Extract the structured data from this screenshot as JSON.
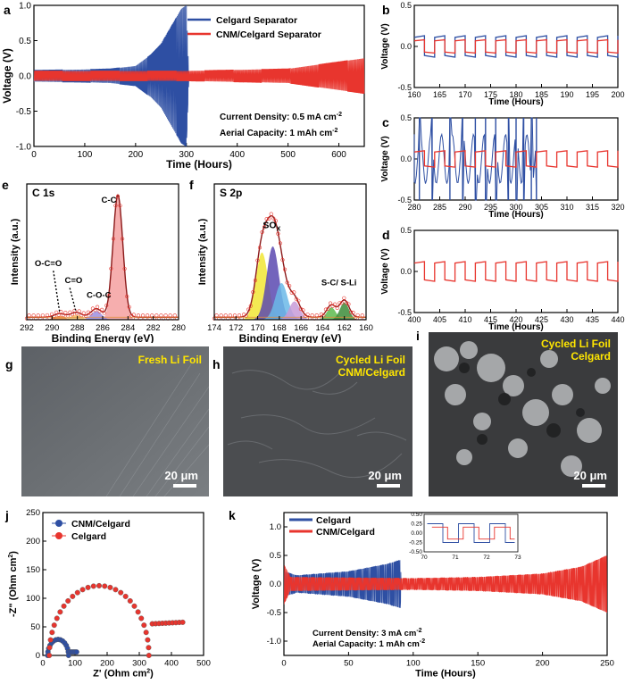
{
  "colors": {
    "celgard": "#2e4fa3",
    "cnm": "#e8352e",
    "fit": "#8b1a1a",
    "sem_label": "#ffe600"
  },
  "panel_letters": [
    "a",
    "b",
    "c",
    "d",
    "e",
    "f",
    "g",
    "h",
    "i",
    "j",
    "k"
  ],
  "chart_data": [
    {
      "id": "a",
      "type": "line",
      "xlabel": "Time (Hours)",
      "ylabel": "Voltage (V)",
      "xlim": [
        0,
        650
      ],
      "ylim": [
        -1.0,
        1.0
      ],
      "xticks": [
        0,
        100,
        200,
        300,
        400,
        500,
        600
      ],
      "yticks": [
        -1.0,
        -0.5,
        0.0,
        0.5,
        1.0
      ],
      "series": [
        {
          "name": "Celgard Separator",
          "color": "#2e4fa3",
          "cycle_period_h": 2,
          "amplitude_envelope": {
            "t": [
              0,
              100,
              150,
              200,
              230,
              250,
              270,
              290,
              300,
              305
            ],
            "v": [
              0.08,
              0.09,
              0.1,
              0.14,
              0.3,
              0.45,
              0.7,
              0.95,
              1.0,
              0
            ]
          }
        },
        {
          "name": "CNM/Celgard Separator",
          "color": "#e8352e",
          "cycle_period_h": 2,
          "amplitude_envelope": {
            "t": [
              0,
              300,
              500,
              600,
              650
            ],
            "v": [
              0.07,
              0.07,
              0.1,
              0.2,
              0.25
            ]
          }
        }
      ],
      "annotations": [
        "Current Density: 0.5 mA cm",
        "Aerial Capacity: 1 mAh cm"
      ],
      "annotation_units": [
        "-2",
        "-2"
      ]
    },
    {
      "id": "b",
      "type": "line",
      "xlabel": "Time (Hours)",
      "ylabel": "Voltage (V)",
      "xlim": [
        160,
        200
      ],
      "ylim": [
        -0.5,
        0.5
      ],
      "xticks": [
        160,
        165,
        170,
        175,
        180,
        185,
        190,
        195,
        200
      ],
      "yticks": [
        -0.5,
        0.0,
        0.5
      ],
      "series": [
        {
          "name": "Celgard Separator",
          "color": "#2e4fa3",
          "amplitude": 0.13,
          "period_h": 4
        },
        {
          "name": "CNM/Celgard Separator",
          "color": "#e8352e",
          "amplitude": 0.08,
          "period_h": 4
        }
      ]
    },
    {
      "id": "c",
      "type": "line",
      "xlabel": "Time (Hours)",
      "ylabel": "Voltage (V)",
      "xlim": [
        280,
        320
      ],
      "ylim": [
        -0.5,
        0.5
      ],
      "xticks": [
        280,
        285,
        290,
        295,
        300,
        305,
        310,
        315,
        320
      ],
      "yticks": [
        -0.5,
        0.0,
        0.5
      ],
      "series": [
        {
          "name": "Celgard Separator",
          "color": "#2e4fa3",
          "fail_time_h": 304
        },
        {
          "name": "CNM/Celgard Separator",
          "color": "#e8352e",
          "amplitude": 0.1,
          "period_h": 4
        }
      ]
    },
    {
      "id": "d",
      "type": "line",
      "xlabel": "Time (Hours)",
      "ylabel": "Voltage (V)",
      "xlim": [
        400,
        440
      ],
      "ylim": [
        -0.5,
        0.5
      ],
      "xticks": [
        400,
        405,
        410,
        415,
        420,
        425,
        430,
        435,
        440
      ],
      "yticks": [
        -0.5,
        0.0,
        0.5
      ],
      "series": [
        {
          "name": "CNM/Celgard Separator",
          "color": "#e8352e",
          "amplitude": 0.12,
          "period_h": 4
        }
      ]
    },
    {
      "id": "e",
      "type": "area",
      "title": "C 1s",
      "xlabel": "Binding Energy (eV)",
      "ylabel": "Intensity (a.u.)",
      "xlim": [
        292,
        280
      ],
      "xticks": [
        292,
        290,
        288,
        286,
        284,
        282,
        280
      ],
      "peaks": [
        {
          "label": "C-C",
          "center": 284.8,
          "height": 1.0,
          "width": 0.55,
          "color": "#f4a0a0"
        },
        {
          "label": "C-O-C",
          "center": 286.5,
          "height": 0.07,
          "width": 0.6,
          "color": "#9c8fe0"
        },
        {
          "label": "C=O",
          "center": 288.1,
          "height": 0.04,
          "width": 0.6,
          "color": "#f6c26b"
        },
        {
          "label": "O-C=O",
          "center": 289.4,
          "height": 0.03,
          "width": 0.6,
          "color": "#f08c3c"
        }
      ]
    },
    {
      "id": "f",
      "type": "area",
      "title": "S 2p",
      "xlabel": "Binding Energy (eV)",
      "ylabel": "Intensity (a.u.)",
      "xlim": [
        174,
        160
      ],
      "xticks": [
        174,
        172,
        170,
        168,
        166,
        164,
        162,
        160
      ],
      "labels": [
        "SO",
        "X",
        "S-C/ S-Li"
      ],
      "peaks": [
        {
          "center": 169.6,
          "height": 0.55,
          "width": 0.8,
          "color": "#f1e635"
        },
        {
          "center": 168.6,
          "height": 0.6,
          "width": 0.8,
          "color": "#5a49b0"
        },
        {
          "center": 167.8,
          "height": 0.3,
          "width": 0.8,
          "color": "#6bb8e8"
        },
        {
          "center": 166.6,
          "height": 0.15,
          "width": 0.7,
          "color": "#c89bd8"
        },
        {
          "center": 163.2,
          "height": 0.1,
          "width": 0.6,
          "color": "#5dbb4f"
        },
        {
          "center": 162.0,
          "height": 0.14,
          "width": 0.6,
          "color": "#3c8c3a"
        }
      ]
    },
    {
      "id": "j",
      "type": "scatter",
      "xlabel": "Z' (Ohm cm",
      "ylabel": "-Z\" (Ohm cm",
      "unit_sup": "2",
      "xlim": [
        0,
        500
      ],
      "ylim": [
        0,
        250
      ],
      "xticks": [
        0,
        100,
        200,
        300,
        400,
        500
      ],
      "yticks": [
        0,
        50,
        100,
        150,
        200,
        250
      ],
      "series": [
        {
          "name": "CNM/Celgard",
          "color": "#2e4fa3",
          "semicircle": {
            "start": 15,
            "end": 80,
            "peak": 28
          },
          "tail_end": 105
        },
        {
          "name": "Celgard",
          "color": "#e8352e",
          "semicircle": {
            "start": 20,
            "end": 330,
            "peak": 122
          },
          "tail_end": 435
        }
      ]
    },
    {
      "id": "k",
      "type": "line",
      "xlabel": "Time (Hours)",
      "ylabel": "Voltage (V)",
      "xlim": [
        0,
        250
      ],
      "ylim": [
        -1.25,
        1.25
      ],
      "xticks": [
        0,
        50,
        100,
        150,
        200,
        250
      ],
      "yticks": [
        -1.0,
        -0.5,
        0.0,
        0.5,
        1.0
      ],
      "series": [
        {
          "name": "Celgard",
          "color": "#2e4fa3",
          "amplitude_envelope": {
            "t": [
              0,
              10,
              50,
              80,
              90,
              91
            ],
            "v": [
              0.22,
              0.15,
              0.22,
              0.35,
              0.42,
              0
            ]
          }
        },
        {
          "name": "CNM/Celgard",
          "color": "#e8352e",
          "amplitude_envelope": {
            "t": [
              0,
              5,
              100,
              150,
              200,
              230,
              250
            ],
            "v": [
              0.35,
              0.12,
              0.1,
              0.12,
              0.18,
              0.3,
              0.5
            ]
          }
        }
      ],
      "annotations": [
        "Current Density: 3 mA cm",
        "Aerial Capacity: 1 mAh cm"
      ],
      "annotation_units": [
        "-2",
        "-2"
      ],
      "inset": {
        "xlim": [
          70,
          73
        ],
        "ylim": [
          -0.5,
          0.5
        ],
        "xticks": [
          70,
          71,
          72,
          73
        ],
        "yticks": [
          "0.50",
          "0.25",
          "0.00",
          "-0.25",
          "-0.50"
        ]
      }
    }
  ],
  "sem": [
    {
      "id": "g",
      "label": "Fresh Li Foil",
      "scale": "20 μm"
    },
    {
      "id": "h",
      "label": "Cycled Li Foil",
      "label2": "CNM/Celgard",
      "scale": "20 μm"
    },
    {
      "id": "i",
      "label": "Cycled Li Foil",
      "label2": "Celgard",
      "scale": "20 μm"
    }
  ]
}
